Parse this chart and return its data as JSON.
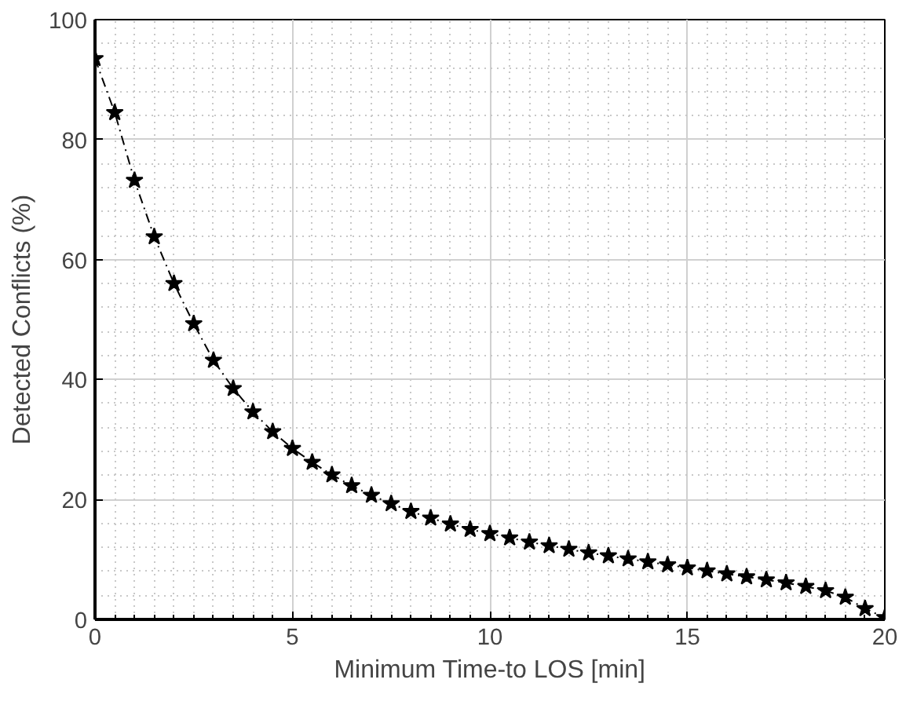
{
  "chart_data": {
    "type": "line",
    "xlabel": "Minimum Time-to LOS [min]",
    "ylabel": "Detected Conflicts (%)",
    "x": [
      0,
      0.5,
      1,
      1.5,
      2,
      2.5,
      3,
      3.5,
      4,
      4.5,
      5,
      5.5,
      6,
      6.5,
      7,
      7.5,
      8,
      8.5,
      9,
      9.5,
      10,
      10.5,
      11,
      11.5,
      12,
      12.5,
      13,
      13.5,
      14,
      14.5,
      15,
      15.5,
      16,
      16.5,
      17,
      17.5,
      18,
      18.5,
      19,
      19.5,
      20
    ],
    "series": [
      {
        "color": "#000000",
        "values": [
          93.5,
          84.5,
          73.2,
          63.8,
          56.0,
          49.3,
          43.2,
          38.5,
          34.6,
          31.3,
          28.5,
          26.2,
          24.1,
          22.3,
          20.7,
          19.3,
          18.0,
          16.9,
          15.9,
          15.0,
          14.3,
          13.6,
          12.9,
          12.3,
          11.7,
          11.1,
          10.6,
          10.1,
          9.6,
          9.1,
          8.6,
          8.1,
          7.6,
          7.1,
          6.6,
          6.1,
          5.5,
          4.8,
          3.7,
          1.8,
          0.3
        ]
      }
    ],
    "xlim": [
      0,
      20
    ],
    "ylim": [
      0,
      100
    ],
    "xticks": [
      0,
      5,
      10,
      15,
      20
    ],
    "yticks": [
      0,
      20,
      40,
      60,
      80,
      100
    ],
    "grid": true,
    "marker": "star",
    "line_style": "dashed"
  }
}
